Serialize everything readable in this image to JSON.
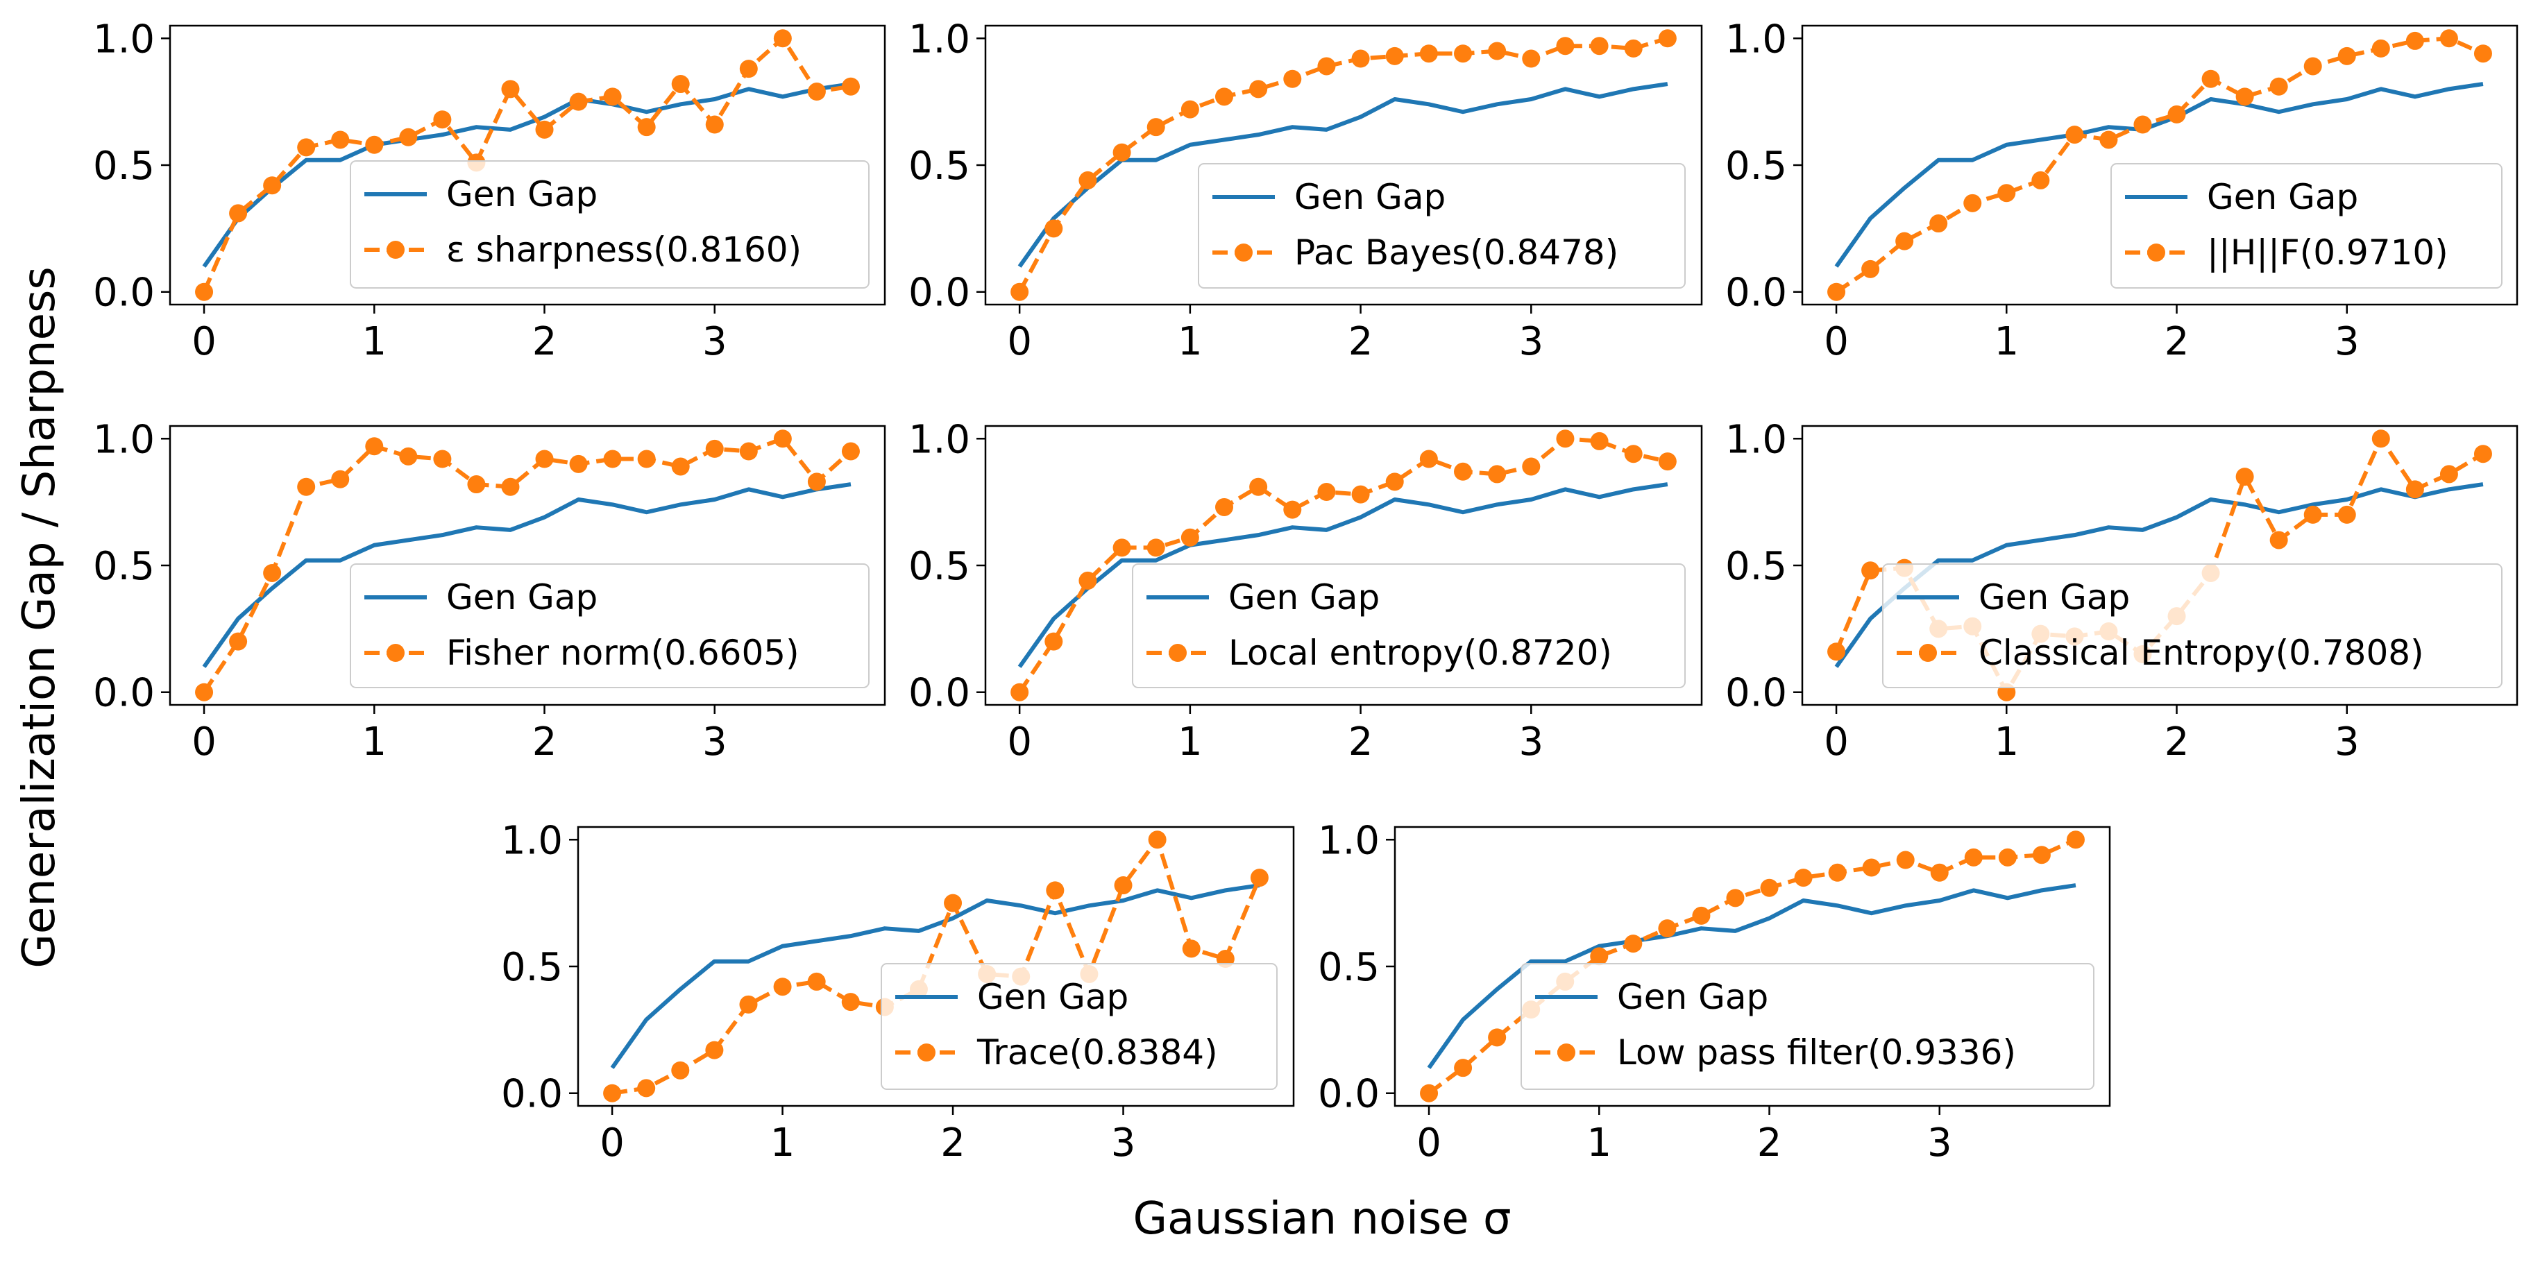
{
  "figure": {
    "ylabel": "Generalization Gap / Sharpness",
    "xlabel": "Gaussian noise σ"
  },
  "colors": {
    "gen_gap": "#1f77b4",
    "sharpness": "#ff7f0e"
  },
  "chart_data": [
    {
      "type": "line",
      "grid": false,
      "legend": "lower-right",
      "xlim": [
        -0.2,
        4.0
      ],
      "ylim": [
        -0.05,
        1.05
      ],
      "xticks": [
        "0",
        "1",
        "2",
        "3"
      ],
      "yticks": [
        "0.0",
        "0.5",
        "1.0"
      ],
      "x": [
        0,
        0.2,
        0.4,
        0.6,
        0.8,
        1.0,
        1.2,
        1.4,
        1.6,
        1.8,
        2.0,
        2.2,
        2.4,
        2.6,
        2.8,
        3.0,
        3.2,
        3.4,
        3.6,
        3.8
      ],
      "series": [
        {
          "name": "Gen Gap",
          "style": "solid",
          "values": [
            0.1,
            0.29,
            0.41,
            0.52,
            0.52,
            0.58,
            0.6,
            0.62,
            0.65,
            0.64,
            0.69,
            0.76,
            0.74,
            0.71,
            0.74,
            0.76,
            0.8,
            0.77,
            0.8,
            0.82
          ]
        },
        {
          "name": "ε sharpness(0.8160)",
          "style": "dashed-dot",
          "values": [
            0.0,
            0.31,
            0.42,
            0.57,
            0.6,
            0.58,
            0.61,
            0.68,
            0.51,
            0.8,
            0.64,
            0.75,
            0.77,
            0.65,
            0.82,
            0.66,
            0.88,
            1.0,
            0.79,
            0.81
          ]
        }
      ]
    },
    {
      "type": "line",
      "grid": false,
      "legend": "lower-right",
      "xlim": [
        -0.2,
        4.0
      ],
      "ylim": [
        -0.05,
        1.05
      ],
      "xticks": [
        "0",
        "1",
        "2",
        "3"
      ],
      "yticks": [
        "0.0",
        "0.5",
        "1.0"
      ],
      "x": [
        0,
        0.2,
        0.4,
        0.6,
        0.8,
        1.0,
        1.2,
        1.4,
        1.6,
        1.8,
        2.0,
        2.2,
        2.4,
        2.6,
        2.8,
        3.0,
        3.2,
        3.4,
        3.6,
        3.8
      ],
      "series": [
        {
          "name": "Gen Gap",
          "style": "solid",
          "values": [
            0.1,
            0.29,
            0.41,
            0.52,
            0.52,
            0.58,
            0.6,
            0.62,
            0.65,
            0.64,
            0.69,
            0.76,
            0.74,
            0.71,
            0.74,
            0.76,
            0.8,
            0.77,
            0.8,
            0.82
          ]
        },
        {
          "name": "Pac Bayes(0.8478)",
          "style": "dashed-dot",
          "values": [
            0.0,
            0.25,
            0.44,
            0.55,
            0.65,
            0.72,
            0.77,
            0.8,
            0.84,
            0.89,
            0.92,
            0.93,
            0.94,
            0.94,
            0.95,
            0.92,
            0.97,
            0.97,
            0.96,
            1.0
          ]
        }
      ]
    },
    {
      "type": "line",
      "grid": false,
      "legend": "lower-right",
      "xlim": [
        -0.2,
        4.0
      ],
      "ylim": [
        -0.05,
        1.05
      ],
      "xticks": [
        "0",
        "1",
        "2",
        "3"
      ],
      "yticks": [
        "0.0",
        "0.5",
        "1.0"
      ],
      "x": [
        0,
        0.2,
        0.4,
        0.6,
        0.8,
        1.0,
        1.2,
        1.4,
        1.6,
        1.8,
        2.0,
        2.2,
        2.4,
        2.6,
        2.8,
        3.0,
        3.2,
        3.4,
        3.6,
        3.8
      ],
      "series": [
        {
          "name": "Gen Gap",
          "style": "solid",
          "values": [
            0.1,
            0.29,
            0.41,
            0.52,
            0.52,
            0.58,
            0.6,
            0.62,
            0.65,
            0.64,
            0.69,
            0.76,
            0.74,
            0.71,
            0.74,
            0.76,
            0.8,
            0.77,
            0.8,
            0.82
          ]
        },
        {
          "name": "||H||F(0.9710)",
          "style": "dashed-dot",
          "values": [
            0.0,
            0.09,
            0.2,
            0.27,
            0.35,
            0.39,
            0.44,
            0.62,
            0.6,
            0.66,
            0.7,
            0.84,
            0.77,
            0.81,
            0.89,
            0.93,
            0.96,
            0.99,
            1.0,
            0.94
          ]
        }
      ]
    },
    {
      "type": "line",
      "grid": false,
      "legend": "lower-right",
      "xlim": [
        -0.2,
        4.0
      ],
      "ylim": [
        -0.05,
        1.05
      ],
      "xticks": [
        "0",
        "1",
        "2",
        "3"
      ],
      "yticks": [
        "0.0",
        "0.5",
        "1.0"
      ],
      "x": [
        0,
        0.2,
        0.4,
        0.6,
        0.8,
        1.0,
        1.2,
        1.4,
        1.6,
        1.8,
        2.0,
        2.2,
        2.4,
        2.6,
        2.8,
        3.0,
        3.2,
        3.4,
        3.6,
        3.8
      ],
      "series": [
        {
          "name": "Gen Gap",
          "style": "solid",
          "values": [
            0.1,
            0.29,
            0.41,
            0.52,
            0.52,
            0.58,
            0.6,
            0.62,
            0.65,
            0.64,
            0.69,
            0.76,
            0.74,
            0.71,
            0.74,
            0.76,
            0.8,
            0.77,
            0.8,
            0.82
          ]
        },
        {
          "name": "Fisher norm(0.6605)",
          "style": "dashed-dot",
          "values": [
            0.0,
            0.2,
            0.47,
            0.81,
            0.84,
            0.97,
            0.93,
            0.92,
            0.82,
            0.81,
            0.92,
            0.9,
            0.92,
            0.92,
            0.89,
            0.96,
            0.95,
            1.0,
            0.83,
            0.95
          ]
        }
      ]
    },
    {
      "type": "line",
      "grid": false,
      "legend": "lower-right",
      "xlim": [
        -0.2,
        4.0
      ],
      "ylim": [
        -0.05,
        1.05
      ],
      "xticks": [
        "0",
        "1",
        "2",
        "3"
      ],
      "yticks": [
        "0.0",
        "0.5",
        "1.0"
      ],
      "x": [
        0,
        0.2,
        0.4,
        0.6,
        0.8,
        1.0,
        1.2,
        1.4,
        1.6,
        1.8,
        2.0,
        2.2,
        2.4,
        2.6,
        2.8,
        3.0,
        3.2,
        3.4,
        3.6,
        3.8
      ],
      "series": [
        {
          "name": "Gen Gap",
          "style": "solid",
          "values": [
            0.1,
            0.29,
            0.41,
            0.52,
            0.52,
            0.58,
            0.6,
            0.62,
            0.65,
            0.64,
            0.69,
            0.76,
            0.74,
            0.71,
            0.74,
            0.76,
            0.8,
            0.77,
            0.8,
            0.82
          ]
        },
        {
          "name": "Local entropy(0.8720)",
          "style": "dashed-dot",
          "values": [
            0.0,
            0.2,
            0.44,
            0.57,
            0.57,
            0.61,
            0.73,
            0.81,
            0.72,
            0.79,
            0.78,
            0.83,
            0.92,
            0.87,
            0.86,
            0.89,
            1.0,
            0.99,
            0.94,
            0.91
          ]
        }
      ]
    },
    {
      "type": "line",
      "grid": false,
      "legend": "lower-right",
      "xlim": [
        -0.2,
        4.0
      ],
      "ylim": [
        -0.05,
        1.05
      ],
      "xticks": [
        "0",
        "1",
        "2",
        "3"
      ],
      "yticks": [
        "0.0",
        "0.5",
        "1.0"
      ],
      "x": [
        0,
        0.2,
        0.4,
        0.6,
        0.8,
        1.0,
        1.2,
        1.4,
        1.6,
        1.8,
        2.0,
        2.2,
        2.4,
        2.6,
        2.8,
        3.0,
        3.2,
        3.4,
        3.6,
        3.8
      ],
      "series": [
        {
          "name": "Gen Gap",
          "style": "solid",
          "values": [
            0.1,
            0.29,
            0.41,
            0.52,
            0.52,
            0.58,
            0.6,
            0.62,
            0.65,
            0.64,
            0.69,
            0.76,
            0.74,
            0.71,
            0.74,
            0.76,
            0.8,
            0.77,
            0.8,
            0.82
          ]
        },
        {
          "name": "Classical Entropy(0.7808)",
          "style": "dashed-dot",
          "values": [
            0.16,
            0.48,
            0.49,
            0.25,
            0.26,
            0.0,
            0.23,
            0.22,
            0.24,
            0.15,
            0.3,
            0.47,
            0.85,
            0.6,
            0.7,
            0.7,
            1.0,
            0.8,
            0.86,
            0.94
          ]
        }
      ]
    },
    {
      "type": "line",
      "grid": false,
      "legend": "lower-right",
      "xlim": [
        -0.2,
        4.0
      ],
      "ylim": [
        -0.05,
        1.05
      ],
      "xticks": [
        "0",
        "1",
        "2",
        "3"
      ],
      "yticks": [
        "0.0",
        "0.5",
        "1.0"
      ],
      "x": [
        0,
        0.2,
        0.4,
        0.6,
        0.8,
        1.0,
        1.2,
        1.4,
        1.6,
        1.8,
        2.0,
        2.2,
        2.4,
        2.6,
        2.8,
        3.0,
        3.2,
        3.4,
        3.6,
        3.8
      ],
      "series": [
        {
          "name": "Gen Gap",
          "style": "solid",
          "values": [
            0.1,
            0.29,
            0.41,
            0.52,
            0.52,
            0.58,
            0.6,
            0.62,
            0.65,
            0.64,
            0.69,
            0.76,
            0.74,
            0.71,
            0.74,
            0.76,
            0.8,
            0.77,
            0.8,
            0.82
          ]
        },
        {
          "name": "Trace(0.8384)",
          "style": "dashed-dot",
          "values": [
            0.0,
            0.02,
            0.09,
            0.17,
            0.35,
            0.42,
            0.44,
            0.36,
            0.34,
            0.41,
            0.75,
            0.47,
            0.46,
            0.8,
            0.47,
            0.82,
            1.0,
            0.57,
            0.53,
            0.85
          ]
        }
      ]
    },
    {
      "type": "line",
      "grid": false,
      "legend": "lower-right",
      "xlim": [
        -0.2,
        4.0
      ],
      "ylim": [
        -0.05,
        1.05
      ],
      "xticks": [
        "0",
        "1",
        "2",
        "3"
      ],
      "yticks": [
        "0.0",
        "0.5",
        "1.0"
      ],
      "x": [
        0,
        0.2,
        0.4,
        0.6,
        0.8,
        1.0,
        1.2,
        1.4,
        1.6,
        1.8,
        2.0,
        2.2,
        2.4,
        2.6,
        2.8,
        3.0,
        3.2,
        3.4,
        3.6,
        3.8
      ],
      "series": [
        {
          "name": "Gen Gap",
          "style": "solid",
          "values": [
            0.1,
            0.29,
            0.41,
            0.52,
            0.52,
            0.58,
            0.6,
            0.62,
            0.65,
            0.64,
            0.69,
            0.76,
            0.74,
            0.71,
            0.74,
            0.76,
            0.8,
            0.77,
            0.8,
            0.82
          ]
        },
        {
          "name": "Low pass filter(0.9336)",
          "style": "dashed-dot",
          "values": [
            0.0,
            0.1,
            0.22,
            0.33,
            0.44,
            0.54,
            0.59,
            0.65,
            0.7,
            0.77,
            0.81,
            0.85,
            0.87,
            0.89,
            0.92,
            0.87,
            0.93,
            0.93,
            0.94,
            1.0
          ]
        }
      ]
    }
  ]
}
